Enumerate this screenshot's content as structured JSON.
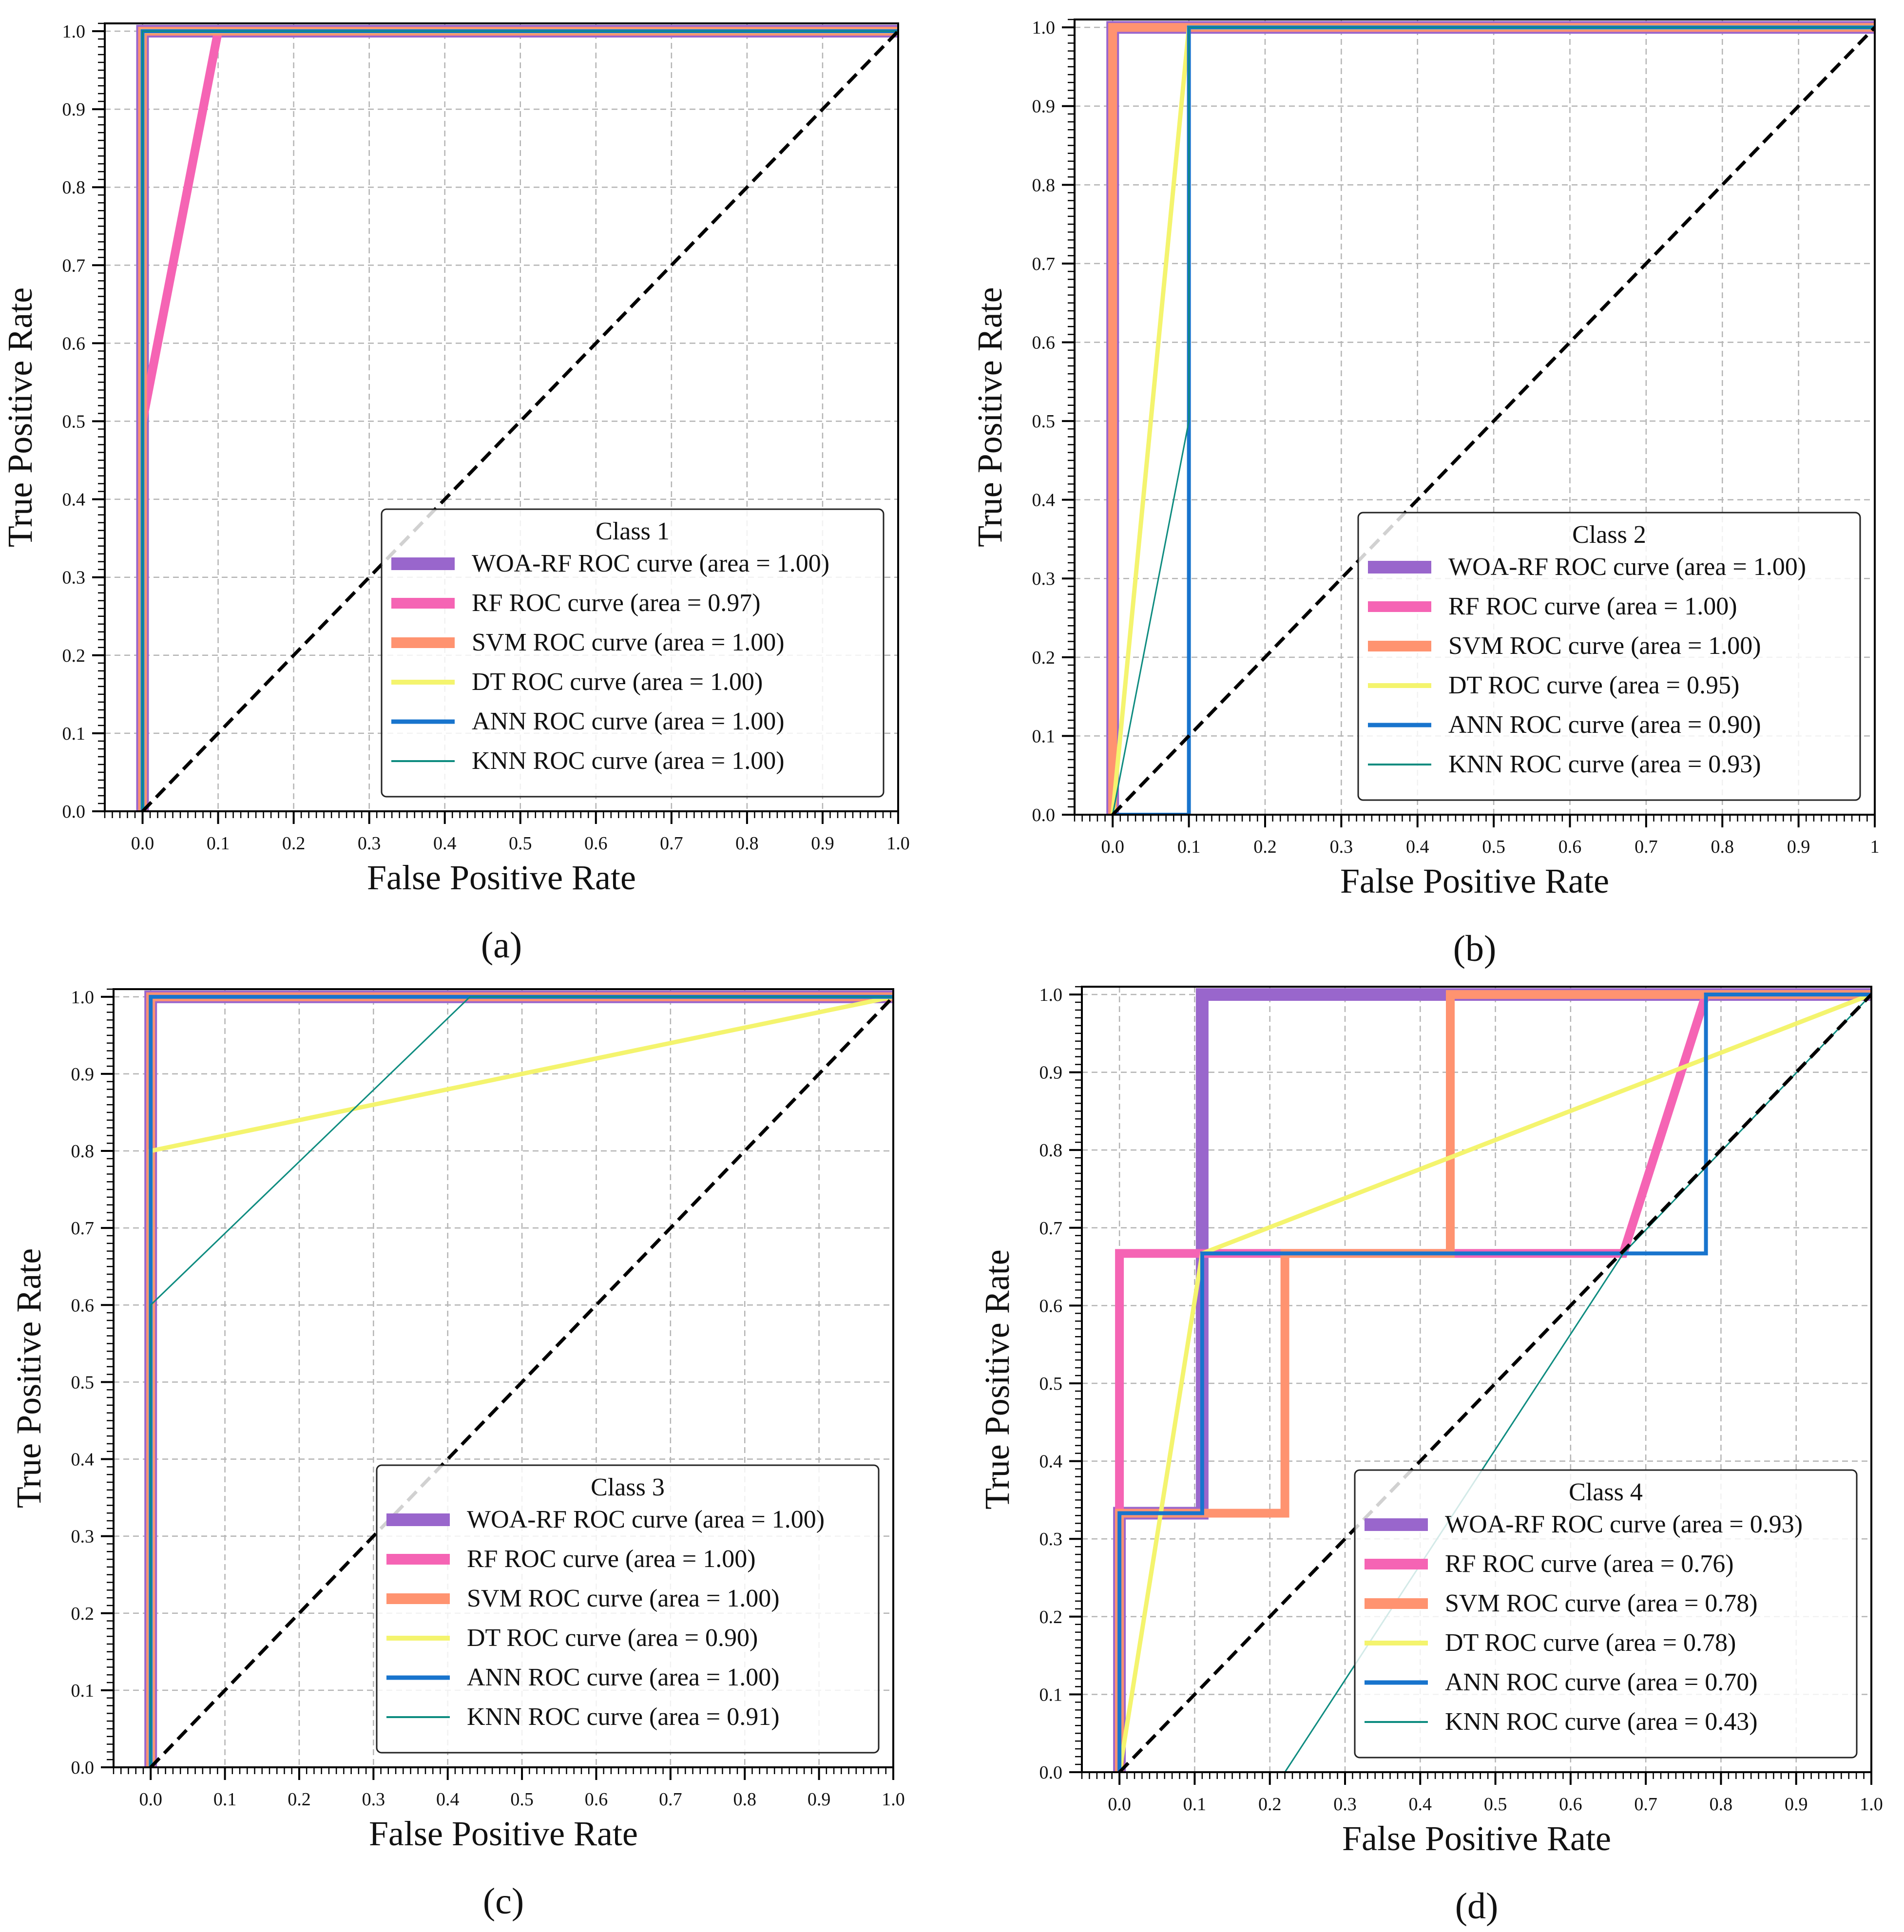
{
  "chart_data": [
    {
      "type": "line",
      "caption": "(a)",
      "xlabel": "False Positive Rate",
      "ylabel": "True Positive Rate",
      "xlim": [
        -0.05,
        1.0
      ],
      "ylim": [
        0.0,
        1.01
      ],
      "xticks": [
        "0.0",
        "0.1",
        "0.2",
        "0.3",
        "0.4",
        "0.5",
        "0.6",
        "0.7",
        "0.8",
        "0.9",
        "1.0"
      ],
      "yticks": [
        "0.0",
        "0.1",
        "0.2",
        "0.3",
        "0.4",
        "0.5",
        "0.6",
        "0.7",
        "0.8",
        "0.9",
        "1.0"
      ],
      "grid": true,
      "legend_title": "Class 1",
      "legend_position": "lower-right",
      "series": [
        {
          "name": "WOA-RF ROC curve (area = 1.00)",
          "color": "#9966CC",
          "x": [
            0,
            0,
            1
          ],
          "y": [
            0,
            1,
            1
          ]
        },
        {
          "name": "RF ROC curve (area = 0.97)",
          "color": "#F564B4",
          "x": [
            0,
            0,
            0.1,
            1
          ],
          "y": [
            0,
            0.5,
            1,
            1
          ]
        },
        {
          "name": "SVM ROC curve (area = 1.00)",
          "color": "#FF9370",
          "x": [
            0,
            0,
            1
          ],
          "y": [
            0,
            1,
            1
          ]
        },
        {
          "name": "DT ROC curve (area = 1.00)",
          "color": "#F4F46E",
          "x": [
            0,
            0,
            1
          ],
          "y": [
            0,
            1,
            1
          ]
        },
        {
          "name": "ANN ROC curve (area = 1.00)",
          "color": "#1874CD",
          "x": [
            0,
            0,
            1
          ],
          "y": [
            0,
            1,
            1
          ]
        },
        {
          "name": "KNN ROC curve (area = 1.00)",
          "color": "#0E8C80",
          "x": [
            0,
            0,
            1
          ],
          "y": [
            0,
            1,
            1
          ]
        }
      ]
    },
    {
      "type": "line",
      "caption": "(b)",
      "xlabel": "False Positive Rate",
      "ylabel": "True Positive Rate",
      "xlim": [
        -0.05,
        1.0
      ],
      "ylim": [
        0.0,
        1.01
      ],
      "xticks": [
        "0.0",
        "0.1",
        "0.2",
        "0.3",
        "0.4",
        "0.5",
        "0.6",
        "0.7",
        "0.8",
        "0.9",
        "1"
      ],
      "yticks": [
        "0.0",
        "0.1",
        "0.2",
        "0.3",
        "0.4",
        "0.5",
        "0.6",
        "0.7",
        "0.8",
        "0.9",
        "1.0"
      ],
      "grid": true,
      "legend_title": "Class 2",
      "legend_position": "lower-right",
      "series": [
        {
          "name": "WOA-RF ROC curve (area = 1.00)",
          "color": "#9966CC",
          "x": [
            0,
            0,
            1
          ],
          "y": [
            0,
            1,
            1
          ]
        },
        {
          "name": "RF ROC curve (area = 1.00)",
          "color": "#F564B4",
          "x": [
            0,
            0,
            1
          ],
          "y": [
            0,
            1,
            1
          ]
        },
        {
          "name": "SVM ROC curve (area = 1.00)",
          "color": "#FF9370",
          "x": [
            0,
            0,
            1
          ],
          "y": [
            0,
            1,
            1
          ]
        },
        {
          "name": "DT ROC curve (area = 0.95)",
          "color": "#F4F46E",
          "x": [
            0,
            0.1,
            1
          ],
          "y": [
            0,
            1,
            1
          ]
        },
        {
          "name": "ANN ROC curve (area = 0.90)",
          "color": "#1874CD",
          "x": [
            0,
            0.1,
            0.1,
            1
          ],
          "y": [
            0,
            0,
            1,
            1
          ]
        },
        {
          "name": "KNN ROC curve (area = 0.93)",
          "color": "#0E8C80",
          "x": [
            0,
            0.1,
            0.1,
            1
          ],
          "y": [
            0,
            0.5,
            1,
            1
          ]
        }
      ]
    },
    {
      "type": "line",
      "caption": "(c)",
      "xlabel": "False Positive Rate",
      "ylabel": "True Positive Rate",
      "xlim": [
        -0.05,
        1.0
      ],
      "ylim": [
        0.0,
        1.01
      ],
      "xticks": [
        "0.0",
        "0.1",
        "0.2",
        "0.3",
        "0.4",
        "0.5",
        "0.6",
        "0.7",
        "0.8",
        "0.9",
        "1.0"
      ],
      "yticks": [
        "0.0",
        "0.1",
        "0.2",
        "0.3",
        "0.4",
        "0.5",
        "0.6",
        "0.7",
        "0.8",
        "0.9",
        "1.0"
      ],
      "grid": true,
      "legend_title": "Class 3",
      "legend_position": "lower-right",
      "series": [
        {
          "name": "WOA-RF ROC curve (area = 1.00)",
          "color": "#9966CC",
          "x": [
            0,
            0,
            1
          ],
          "y": [
            0,
            1,
            1
          ]
        },
        {
          "name": "RF ROC curve (area = 1.00)",
          "color": "#F564B4",
          "x": [
            0,
            0,
            1
          ],
          "y": [
            0,
            1,
            1
          ]
        },
        {
          "name": "SVM ROC curve (area = 1.00)",
          "color": "#FF9370",
          "x": [
            0,
            0,
            1
          ],
          "y": [
            0,
            1,
            1
          ]
        },
        {
          "name": "DT ROC curve (area = 0.90)",
          "color": "#F4F46E",
          "x": [
            0,
            0,
            1
          ],
          "y": [
            0,
            0.8,
            1
          ]
        },
        {
          "name": "ANN ROC curve (area = 1.00)",
          "color": "#1874CD",
          "x": [
            0,
            0,
            1
          ],
          "y": [
            0,
            1,
            1
          ]
        },
        {
          "name": "KNN ROC curve (area = 0.91)",
          "color": "#0E8C80",
          "x": [
            0,
            0,
            0.43,
            1
          ],
          "y": [
            0,
            0.6,
            1,
            1
          ]
        }
      ]
    },
    {
      "type": "line",
      "caption": "(d)",
      "xlabel": "False Positive Rate",
      "ylabel": "True Positive Rate",
      "xlim": [
        -0.05,
        1.0
      ],
      "ylim": [
        0.0,
        1.01
      ],
      "xticks": [
        "0.0",
        "0.1",
        "0.2",
        "0.3",
        "0.4",
        "0.5",
        "0.6",
        "0.7",
        "0.8",
        "0.9",
        "1.0"
      ],
      "yticks": [
        "0.0",
        "0.1",
        "0.2",
        "0.3",
        "0.4",
        "0.5",
        "0.6",
        "0.7",
        "0.8",
        "0.9",
        "1.0"
      ],
      "grid": true,
      "legend_title": "Class 4",
      "legend_position": "lower-right",
      "series": [
        {
          "name": "WOA-RF ROC curve (area = 0.93)",
          "color": "#9966CC",
          "x": [
            0,
            0,
            0.11,
            0.11,
            1
          ],
          "y": [
            0,
            0.333,
            0.333,
            1,
            1
          ]
        },
        {
          "name": "RF ROC curve (area = 0.76)",
          "color": "#F564B4",
          "x": [
            0,
            0,
            0.67,
            0.78,
            1
          ],
          "y": [
            0,
            0.667,
            0.667,
            1,
            1
          ]
        },
        {
          "name": "SVM ROC curve (area = 0.78)",
          "color": "#FF9370",
          "x": [
            0,
            0,
            0.22,
            0.22,
            0.44,
            0.44,
            1
          ],
          "y": [
            0,
            0.333,
            0.333,
            0.667,
            0.667,
            1,
            1
          ]
        },
        {
          "name": "DT ROC curve (area = 0.78)",
          "color": "#F4F46E",
          "x": [
            0,
            0.11,
            1
          ],
          "y": [
            0,
            0.667,
            1
          ]
        },
        {
          "name": "ANN ROC curve (area = 0.70)",
          "color": "#1874CD",
          "x": [
            0,
            0,
            0.11,
            0.11,
            0.78,
            0.78,
            1
          ],
          "y": [
            0,
            0.333,
            0.333,
            0.667,
            0.667,
            1,
            1
          ]
        },
        {
          "name": "KNN ROC curve (area = 0.43)",
          "color": "#0E8C80",
          "x": [
            0.22,
            0.67,
            1
          ],
          "y": [
            0,
            0.667,
            1
          ]
        }
      ]
    }
  ]
}
